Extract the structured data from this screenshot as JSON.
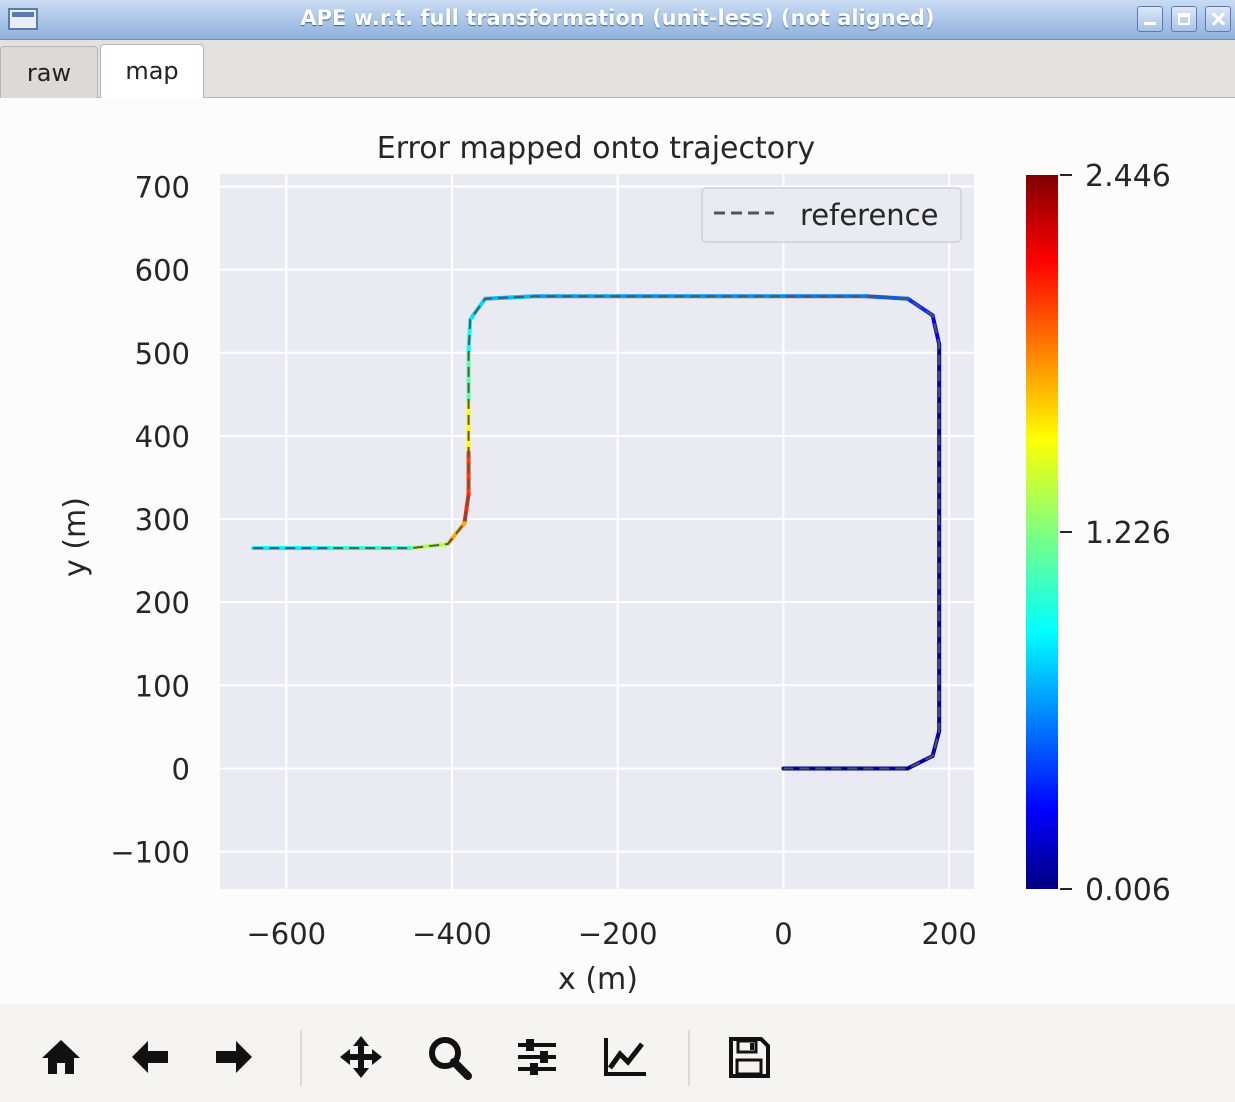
{
  "window": {
    "title": "APE w.r.t. full transformation (unit-less) (not aligned)"
  },
  "tabs": [
    {
      "label": "raw"
    },
    {
      "label": "map"
    }
  ],
  "active_tab": "map",
  "colors": {
    "plot_bg": "#eaeaf2",
    "grid": "#ffffff",
    "reference_line": "#555555"
  },
  "toolbar": {
    "buttons": [
      {
        "icon": "home-icon"
      },
      {
        "icon": "back-arrow-icon"
      },
      {
        "icon": "forward-arrow-icon"
      },
      {
        "icon": "pan-icon"
      },
      {
        "icon": "zoom-icon"
      },
      {
        "icon": "configure-subplots-icon"
      },
      {
        "icon": "edit-axis-icon"
      },
      {
        "icon": "save-icon"
      }
    ]
  },
  "chart_data": {
    "type": "line",
    "title": "Error mapped onto trajectory",
    "xlabel": "x (m)",
    "ylabel": "y (m)",
    "xlim": [
      -680,
      230
    ],
    "ylim": [
      -145,
      715
    ],
    "xticks": [
      -600,
      -400,
      -200,
      0,
      200
    ],
    "yticks": [
      -100,
      0,
      100,
      200,
      300,
      400,
      500,
      600,
      700
    ],
    "xtick_labels": [
      "−600",
      "−400",
      "−200",
      "0",
      "200"
    ],
    "ytick_labels": [
      "−100",
      "0",
      "100",
      "200",
      "300",
      "400",
      "500",
      "600",
      "700"
    ],
    "grid": true,
    "legend": {
      "entries": [
        "reference"
      ],
      "position": "top-right"
    },
    "colorbar": {
      "colormap": "jet",
      "min": 0.006,
      "max": 2.446,
      "ticks": [
        2.446,
        1.226,
        0.006
      ],
      "tick_labels": [
        "2.446",
        "1.226",
        "0.006"
      ]
    },
    "series": [
      {
        "name": "reference",
        "style": "dashed",
        "colored_by": "error",
        "points": [
          {
            "x": 0,
            "y": 0,
            "e": 0.05
          },
          {
            "x": 100,
            "y": 0,
            "e": 0.08
          },
          {
            "x": 150,
            "y": 0,
            "e": 0.1
          },
          {
            "x": 180,
            "y": 15,
            "e": 0.12
          },
          {
            "x": 188,
            "y": 45,
            "e": 0.1
          },
          {
            "x": 188,
            "y": 150,
            "e": 0.08
          },
          {
            "x": 188,
            "y": 300,
            "e": 0.06
          },
          {
            "x": 188,
            "y": 450,
            "e": 0.08
          },
          {
            "x": 188,
            "y": 510,
            "e": 0.15
          },
          {
            "x": 180,
            "y": 545,
            "e": 0.3
          },
          {
            "x": 150,
            "y": 565,
            "e": 0.45
          },
          {
            "x": 100,
            "y": 568,
            "e": 0.55
          },
          {
            "x": 0,
            "y": 568,
            "e": 0.6
          },
          {
            "x": -100,
            "y": 568,
            "e": 0.65
          },
          {
            "x": -200,
            "y": 568,
            "e": 0.62
          },
          {
            "x": -300,
            "y": 568,
            "e": 0.7
          },
          {
            "x": -360,
            "y": 565,
            "e": 0.75
          },
          {
            "x": -378,
            "y": 540,
            "e": 0.85
          },
          {
            "x": -380,
            "y": 500,
            "e": 0.95
          },
          {
            "x": -380,
            "y": 440,
            "e": 1.3
          },
          {
            "x": -380,
            "y": 380,
            "e": 1.8
          },
          {
            "x": -380,
            "y": 330,
            "e": 2.2
          },
          {
            "x": -385,
            "y": 295,
            "e": 1.9
          },
          {
            "x": -405,
            "y": 270,
            "e": 1.6
          },
          {
            "x": -450,
            "y": 265,
            "e": 1.1
          },
          {
            "x": -550,
            "y": 265,
            "e": 0.9
          },
          {
            "x": -640,
            "y": 265,
            "e": 0.8
          }
        ]
      }
    ]
  }
}
